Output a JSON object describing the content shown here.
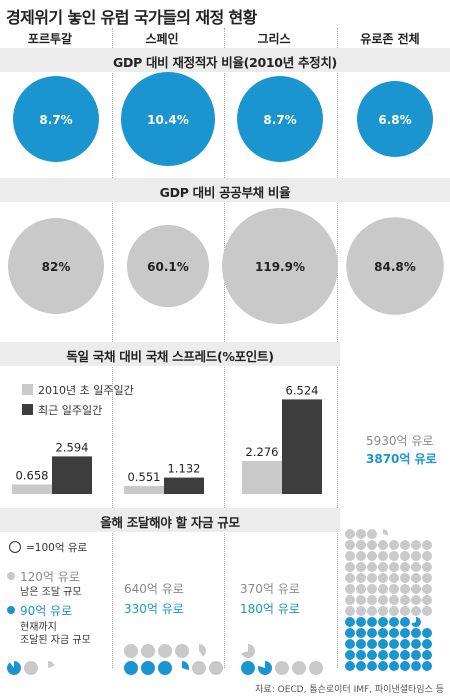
{
  "title": "경제위기 놓인 유럽 국가들의 재정 현황",
  "columns": [
    "포르투갈",
    "스페인",
    "그리스",
    "유로존 전체"
  ],
  "colors": {
    "blue": "#1a95cf",
    "gray": "#c9c9c9",
    "dark": "#3d3d3d",
    "band": "#ececec"
  },
  "chart_data": [
    {
      "type": "bubble",
      "title": "GDP 대비 재정적자 비율(2010년 추정치)",
      "categories": [
        "포르투갈",
        "스페인",
        "그리스",
        "유로존 전체"
      ],
      "values": [
        8.7,
        10.4,
        8.7,
        6.8
      ],
      "labels": [
        "8.7%",
        "10.4%",
        "8.7%",
        "6.8%"
      ]
    },
    {
      "type": "bubble",
      "title": "GDP 대비 공공부채 비율",
      "categories": [
        "포르투갈",
        "스페인",
        "그리스",
        "유로존 전체"
      ],
      "values": [
        82,
        60.1,
        119.9,
        84.8
      ],
      "labels": [
        "82%",
        "60.1%",
        "119.9%",
        "84.8%"
      ]
    },
    {
      "type": "bar",
      "title": "독일 국채 대비 국채 스프레드(%포인트)",
      "categories": [
        "포르투갈",
        "스페인",
        "그리스"
      ],
      "series": [
        {
          "name": "2010년 초 일주일간",
          "values": [
            0.658,
            0.551,
            2.276
          ],
          "labels": [
            "0.658",
            "0.551",
            "2.276"
          ]
        },
        {
          "name": "최근 일주일간",
          "values": [
            2.594,
            1.132,
            6.524
          ],
          "labels": [
            "2.594",
            "1.132",
            "6.524"
          ]
        }
      ]
    },
    {
      "type": "pictogram",
      "title": "올해 조달해야 할 자금 규모",
      "unit": "=100억 유로",
      "legend_remaining_label": "남은 조달 규모",
      "legend_raised_label": "현재까지 조달된 자금 규모",
      "legend_raised_line1": "현재까지",
      "legend_raised_line2": "조달된 자금 규모",
      "categories": [
        "포르투갈",
        "스페인",
        "그리스",
        "유로존 전체"
      ],
      "remaining": [
        120,
        640,
        370,
        5930
      ],
      "raised": [
        90,
        330,
        180,
        3870
      ],
      "remaining_labels": [
        "120억 유로",
        "640억 유로",
        "370억 유로",
        "5930억 유로"
      ],
      "raised_labels": [
        "90억 유로",
        "330억 유로",
        "180억 유로",
        "3870억 유로"
      ]
    }
  ],
  "footer": "자료: OECD, 톰슨로이터 IMF, 파이낸셜타임스 등"
}
